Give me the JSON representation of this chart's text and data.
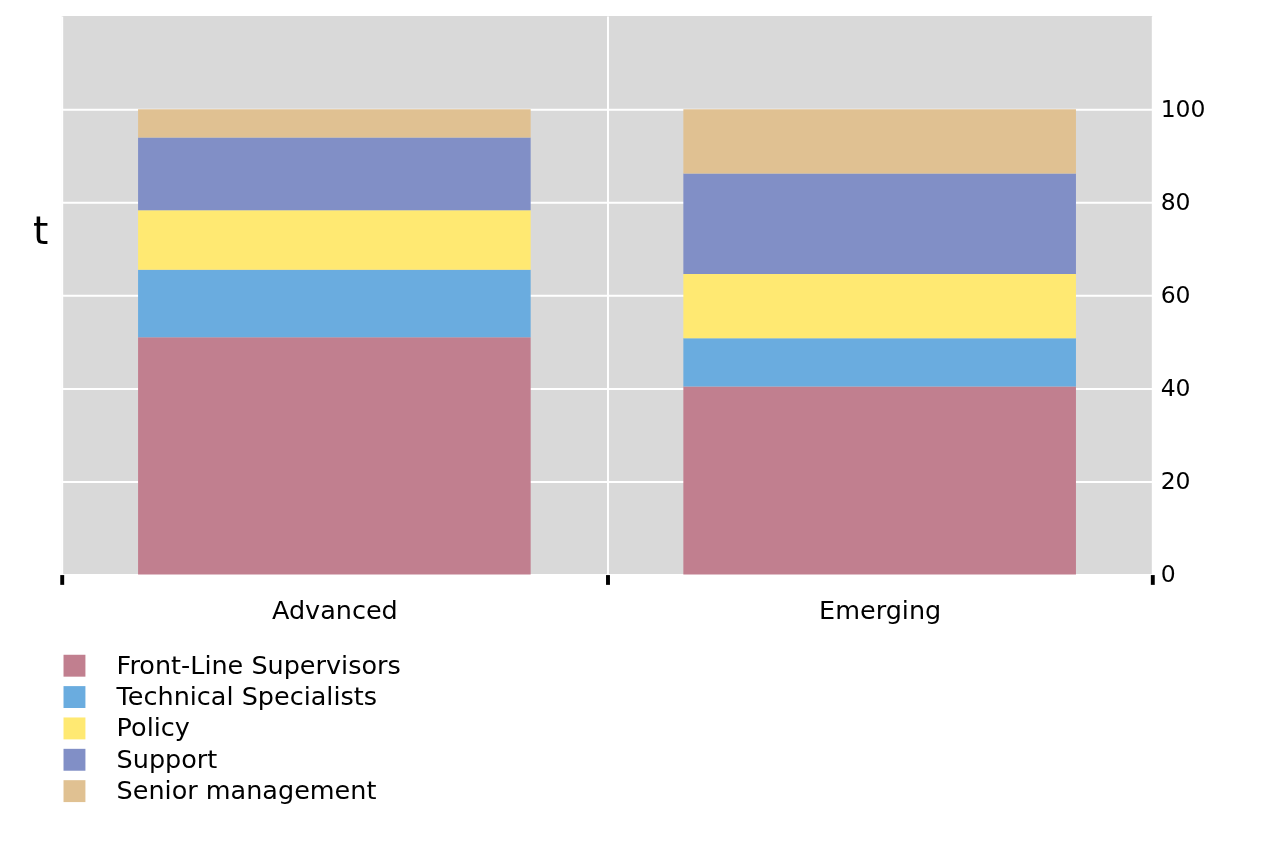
{
  "chart_data": {
    "type": "bar",
    "stacked": true,
    "ylabel": "t",
    "categories": [
      "Advanced",
      "Emerging"
    ],
    "series": [
      {
        "name": "Front-Line Supervisors",
        "color": "#c17f8f",
        "values": [
          51.0,
          40.4
        ]
      },
      {
        "name": "Technical Specialists",
        "color": "#6aacdf",
        "values": [
          14.5,
          10.4
        ]
      },
      {
        "name": "Policy",
        "color": "#ffe972",
        "values": [
          12.8,
          13.8
        ]
      },
      {
        "name": "Support",
        "color": "#818fc6",
        "values": [
          15.6,
          21.6
        ]
      },
      {
        "name": "Senior management",
        "color": "#e0c192",
        "values": [
          6.1,
          13.8
        ]
      }
    ],
    "ylim": [
      0,
      120
    ],
    "yticks": [
      0,
      20,
      40,
      60,
      80,
      100
    ],
    "grid": true,
    "legend": "bottom"
  }
}
